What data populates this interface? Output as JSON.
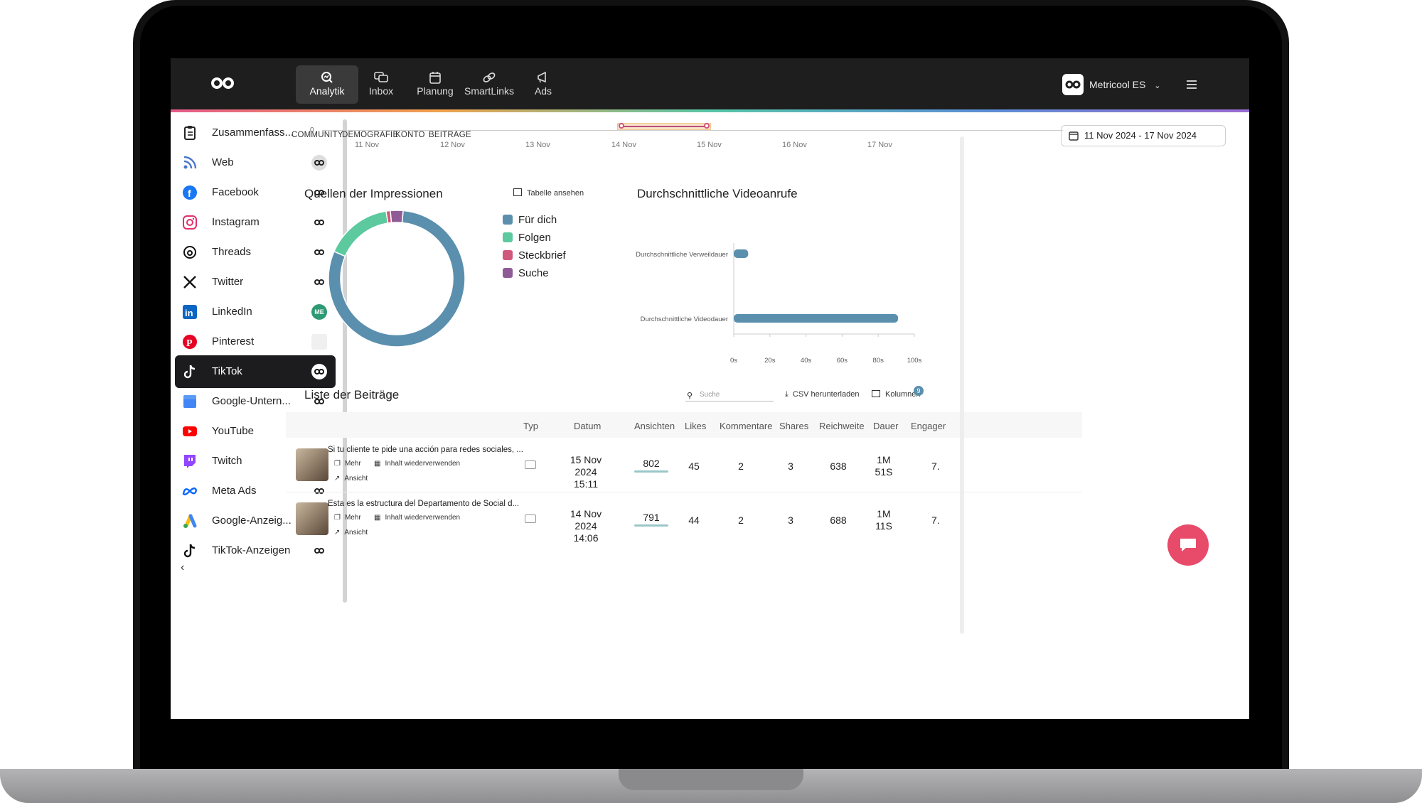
{
  "topnav": {
    "items": [
      {
        "label": "Analytik",
        "icon": "analytics-icon",
        "active": true
      },
      {
        "label": "Inbox",
        "icon": "inbox-icon"
      },
      {
        "label": "Planung",
        "icon": "calendar-icon"
      },
      {
        "label": "SmartLinks",
        "icon": "link-icon"
      },
      {
        "label": "Ads",
        "icon": "megaphone-icon"
      }
    ],
    "account": "Metricool ES"
  },
  "sidebar": {
    "items": [
      {
        "label": "Zusammenfass...",
        "icon": "clipboard-icon"
      },
      {
        "label": "Web",
        "icon": "rss-icon"
      },
      {
        "label": "Facebook",
        "icon": "facebook-icon"
      },
      {
        "label": "Instagram",
        "icon": "instagram-icon"
      },
      {
        "label": "Threads",
        "icon": "threads-icon"
      },
      {
        "label": "Twitter",
        "icon": "x-icon"
      },
      {
        "label": "LinkedIn",
        "icon": "linkedin-icon",
        "badge": "ME"
      },
      {
        "label": "Pinterest",
        "icon": "pinterest-icon"
      },
      {
        "label": "TikTok",
        "icon": "tiktok-icon",
        "active": true
      },
      {
        "label": "Google-Untern...",
        "icon": "google-business-icon"
      },
      {
        "label": "YouTube",
        "icon": "youtube-icon"
      },
      {
        "label": "Twitch",
        "icon": "twitch-icon"
      },
      {
        "label": "Meta Ads",
        "icon": "meta-icon"
      },
      {
        "label": "Google-Anzeig...",
        "icon": "google-ads-icon"
      },
      {
        "label": "TikTok-Anzeigen",
        "icon": "tiktok-icon"
      }
    ]
  },
  "subtabs": [
    "COMMUNITY",
    "DEMOGRAFIE",
    "KONTO",
    "BEITRÄGE"
  ],
  "date_range": "11 Nov 2024 - 17 Nov 2024",
  "top_chart": {
    "y_zero": "0",
    "x_ticks": [
      "11 Nov",
      "12 Nov",
      "13 Nov",
      "14 Nov",
      "15 Nov",
      "16 Nov",
      "17 Nov"
    ]
  },
  "impressions": {
    "title": "Quellen der Impressionen",
    "table_link": "Tabelle ansehen",
    "legend": [
      {
        "name": "Für dich",
        "color": "#5b8fae"
      },
      {
        "name": "Folgen",
        "color": "#5cc99f"
      },
      {
        "name": "Steckbrief",
        "color": "#d0587c"
      },
      {
        "name": "Suche",
        "color": "#8f5b97"
      }
    ]
  },
  "video_chart": {
    "title": "Durchschnittliche Videoanrufe",
    "x_ticks": [
      "0s",
      "20s",
      "40s",
      "60s",
      "80s",
      "100s"
    ]
  },
  "chart_data": [
    {
      "type": "pie",
      "title": "Quellen der Impressionen",
      "categories": [
        "Für dich",
        "Folgen",
        "Steckbrief",
        "Suche"
      ],
      "values": [
        80,
        16,
        1,
        3
      ]
    },
    {
      "type": "bar",
      "title": "Durchschnittliche Videoanrufe",
      "orientation": "horizontal",
      "categories": [
        "Durchschnittliche Verweildauer",
        "Durchschnittliche Videodauer"
      ],
      "values": [
        8,
        91
      ],
      "xlim": [
        0,
        100
      ]
    }
  ],
  "posts": {
    "title": "Liste der Beiträge",
    "search_placeholder": "Suche",
    "csv": "CSV herunterladen",
    "columns_btn": "Kolumnen",
    "columns_badge": "9",
    "headers": [
      "Typ",
      "Datum",
      "Ansichten",
      "Likes",
      "Kommentare",
      "Shares",
      "Reichweite",
      "Dauer",
      "Engager"
    ],
    "more": "Mehr",
    "reuse": "Inhalt wiederverwenden",
    "view": "Ansicht",
    "rows": [
      {
        "text": "Si tu cliente te pide una acción para redes sociales, ...",
        "date": "15 Nov 2024",
        "time": "15:11",
        "views": "802",
        "likes": "45",
        "comments": "2",
        "shares": "3",
        "reach": "638",
        "dur1": "1M",
        "dur2": "51S",
        "eng": "7."
      },
      {
        "text": "Esta es la estructura del Departamento de Social d...",
        "date": "14 Nov 2024",
        "time": "14:06",
        "views": "791",
        "likes": "44",
        "comments": "2",
        "shares": "3",
        "reach": "688",
        "dur1": "1M",
        "dur2": "11S",
        "eng": "7."
      }
    ]
  }
}
